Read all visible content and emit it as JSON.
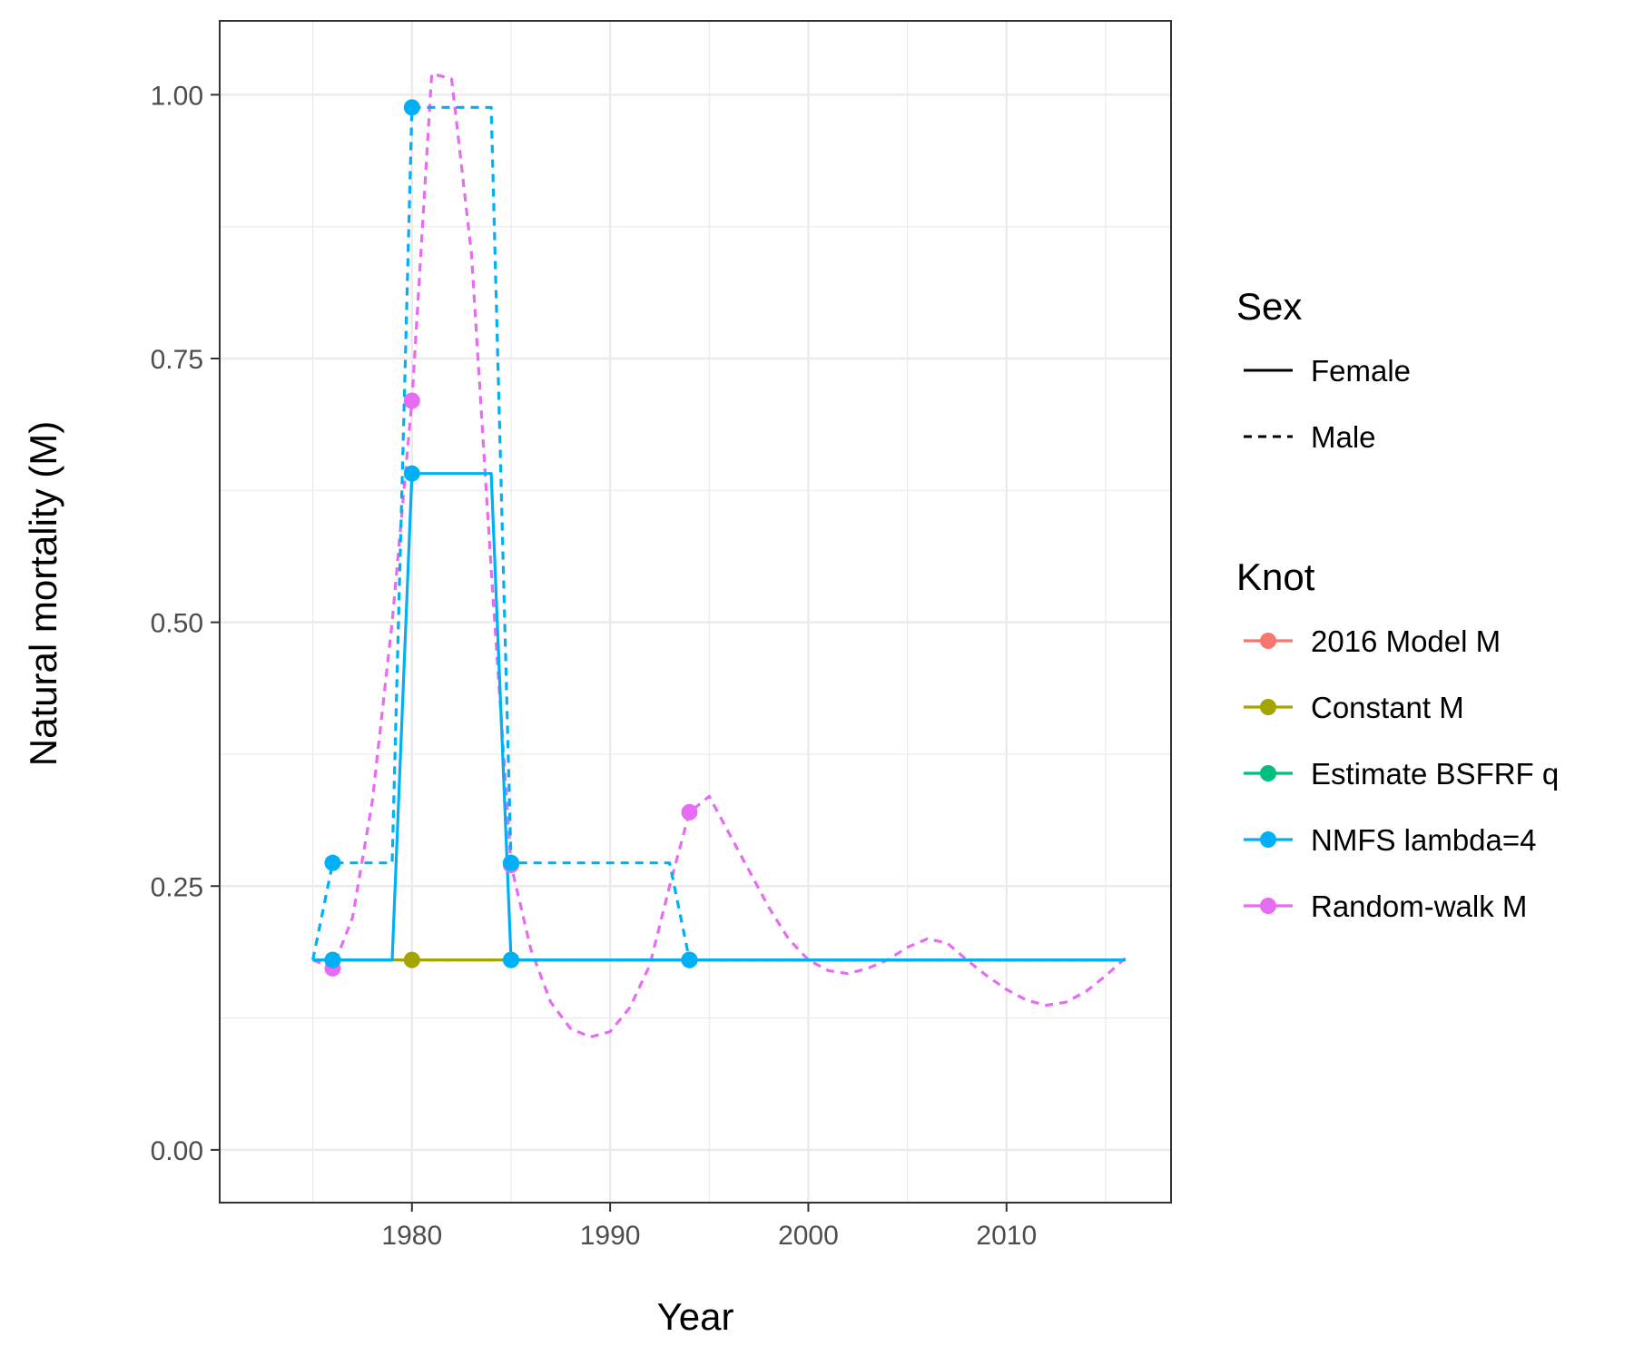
{
  "chart_data": {
    "type": "line",
    "title": "",
    "xlabel": "Year",
    "ylabel": "Natural mortality (M)",
    "xlim": [
      1970.3,
      2018.3
    ],
    "ylim": [
      -0.05,
      1.07
    ],
    "x_ticks": [
      "1980",
      "1990",
      "2000",
      "2010"
    ],
    "y_ticks": [
      "0.00",
      "0.25",
      "0.50",
      "0.75",
      "1.00"
    ],
    "grid": true,
    "legend_position": "right",
    "legends": {
      "sex": {
        "title": "Sex",
        "entries": [
          {
            "label": "Female",
            "linetype": "solid"
          },
          {
            "label": "Male",
            "linetype": "dashed"
          }
        ]
      },
      "knot": {
        "title": "Knot",
        "entries": [
          {
            "label": "2016 Model M",
            "color": "#F8766D"
          },
          {
            "label": "Constant M",
            "color": "#A3A500"
          },
          {
            "label": "Estimate BSFRF q",
            "color": "#00BF7D"
          },
          {
            "label": "NMFS lambda=4",
            "color": "#00B0F6"
          },
          {
            "label": "Random-walk M",
            "color": "#E76BF3"
          }
        ]
      }
    },
    "series": [
      {
        "knot": "Constant M",
        "sex": "Female",
        "color": "#A3A500",
        "linetype": "solid",
        "x": [
          1975,
          2016
        ],
        "y": [
          0.18,
          0.18
        ],
        "knots": [
          {
            "x": 1976,
            "y": 0.18
          },
          {
            "x": 1980,
            "y": 0.18
          },
          {
            "x": 1985,
            "y": 0.18
          },
          {
            "x": 1994,
            "y": 0.18
          }
        ]
      },
      {
        "knot": "Constant M",
        "sex": "Male",
        "color": "#A3A500",
        "linetype": "dashed",
        "x": [
          1975,
          2016
        ],
        "y": [
          0.18,
          0.18
        ],
        "knots": []
      },
      {
        "knot": "Random-walk M",
        "sex": "Male",
        "color": "#E76BF3",
        "linetype": "dashed",
        "x": [
          1975,
          1976,
          1977,
          1978,
          1979,
          1980,
          1981,
          1982,
          1983,
          1984,
          1985,
          1986,
          1987,
          1988,
          1989,
          1990,
          1991,
          1992,
          1993,
          1994,
          1995,
          1996,
          1997,
          1998,
          1999,
          2000,
          2001,
          2002,
          2003,
          2004,
          2005,
          2006,
          2007,
          2008,
          2009,
          2010,
          2011,
          2012,
          2013,
          2014,
          2015,
          2016
        ],
        "y": [
          0.18,
          0.172,
          0.22,
          0.33,
          0.5,
          0.71,
          1.02,
          1.015,
          0.85,
          0.55,
          0.27,
          0.19,
          0.14,
          0.115,
          0.107,
          0.112,
          0.135,
          0.175,
          0.25,
          0.32,
          0.335,
          0.3,
          0.265,
          0.23,
          0.2,
          0.18,
          0.17,
          0.167,
          0.172,
          0.18,
          0.192,
          0.2,
          0.196,
          0.18,
          0.165,
          0.152,
          0.142,
          0.137,
          0.14,
          0.15,
          0.165,
          0.182
        ],
        "knots": [
          {
            "x": 1976,
            "y": 0.172
          },
          {
            "x": 1980,
            "y": 0.71
          },
          {
            "x": 1985,
            "y": 0.27
          },
          {
            "x": 1994,
            "y": 0.32
          }
        ]
      },
      {
        "knot": "NMFS lambda=4",
        "sex": "Male",
        "color": "#00B0F6",
        "linetype": "dashed",
        "x": [
          1975,
          1976,
          1979,
          1980,
          1984,
          1985,
          1993,
          1994,
          2016
        ],
        "y": [
          0.18,
          0.272,
          0.272,
          0.988,
          0.988,
          0.272,
          0.272,
          0.18,
          0.18
        ],
        "knots": [
          {
            "x": 1976,
            "y": 0.272
          },
          {
            "x": 1980,
            "y": 0.988
          },
          {
            "x": 1985,
            "y": 0.272
          },
          {
            "x": 1994,
            "y": 0.18
          }
        ]
      },
      {
        "knot": "NMFS lambda=4",
        "sex": "Female",
        "color": "#00B0F6",
        "linetype": "solid",
        "x": [
          1975,
          1979,
          1980,
          1984,
          1985,
          2016
        ],
        "y": [
          0.18,
          0.18,
          0.641,
          0.641,
          0.18,
          0.18
        ],
        "knots": [
          {
            "x": 1976,
            "y": 0.18
          },
          {
            "x": 1980,
            "y": 0.641
          },
          {
            "x": 1985,
            "y": 0.18
          },
          {
            "x": 1994,
            "y": 0.18
          }
        ]
      }
    ]
  }
}
